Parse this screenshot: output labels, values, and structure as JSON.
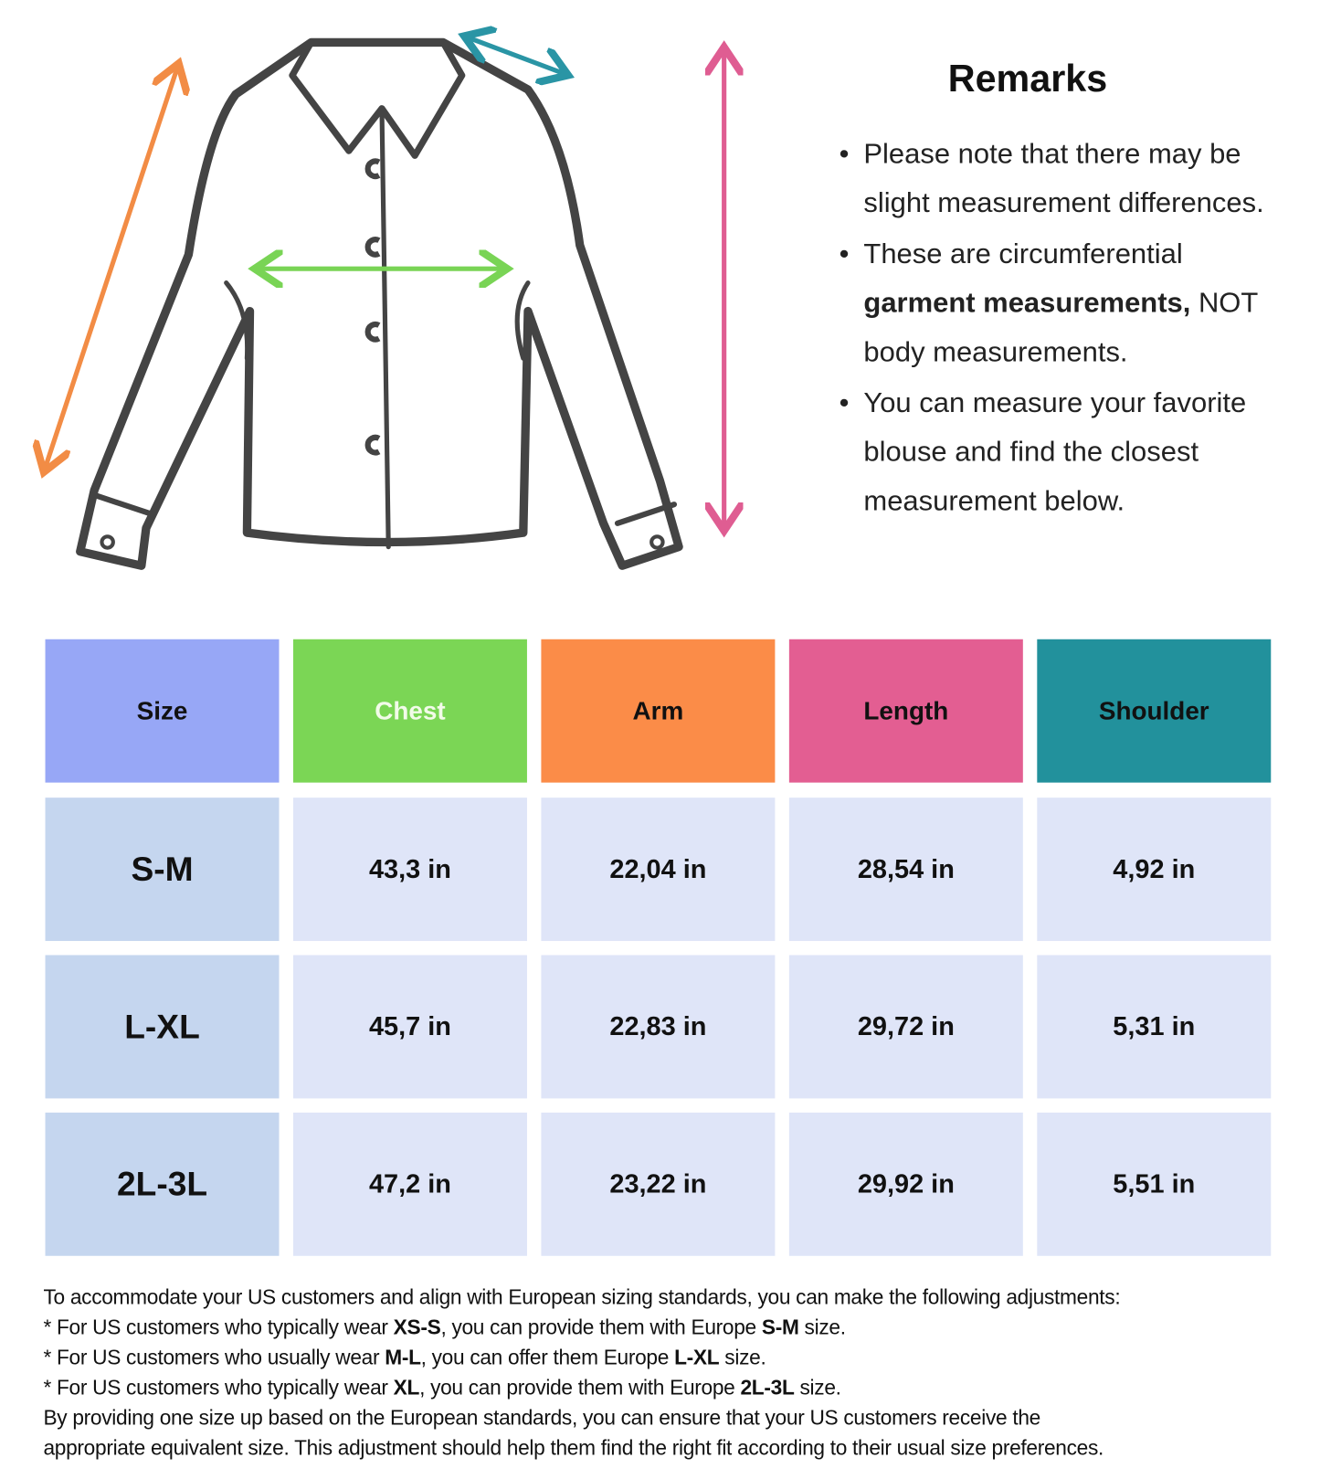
{
  "remarks": {
    "title": "Remarks",
    "items": [
      {
        "text": "Please note that there may be slight measurement differences."
      },
      {
        "text_before": "These are circumferential ",
        "bold": "garment measurements,",
        "text_after": " NOT body measurements."
      },
      {
        "text": "You can measure your favorite blouse and find the closest measurement below."
      }
    ]
  },
  "colors": {
    "size": "#97a7f6",
    "chest": "#7bd655",
    "arm": "#fb8c48",
    "length": "#e35e92",
    "shoulder": "#22919c",
    "value_cell": "#dfe5f8",
    "size_cell": "#c5d6ef"
  },
  "table": {
    "headers": [
      "Size",
      "Chest",
      "Arm",
      "Length",
      "Shoulder"
    ],
    "rows": [
      [
        "S-M",
        "43,3 in",
        "22,04 in",
        "28,54 in",
        "4,92 in"
      ],
      [
        "L-XL",
        "45,7 in",
        "22,83 in",
        "29,72 in",
        "5,31 in"
      ],
      [
        "2L-3L",
        "47,2 in",
        "23,22 in",
        "29,92 in",
        "5,51 in"
      ]
    ]
  },
  "notes": {
    "intro": "To accommodate your US customers and align with European sizing standards, you can make the following adjustments:",
    "lines": [
      {
        "a": "* For US customers who typically wear ",
        "us": "XS-S",
        "b": ", you can provide them with Europe ",
        "eu": "S-M",
        "c": " size."
      },
      {
        "a": "* For US customers who usually wear ",
        "us": "M-L",
        "b": ", you can offer them Europe ",
        "eu": "L-XL",
        "c": " size."
      },
      {
        "a": "* For US customers who typically wear ",
        "us": "XL",
        "b": ", you can provide them with Europe ",
        "eu": "2L-3L",
        "c": " size."
      }
    ],
    "outro_1": "By providing one size up based on the European standards, you can ensure that your US customers receive the",
    "outro_2": "appropriate equivalent size. This adjustment should help them find the right fit according to their usual size preferences."
  }
}
